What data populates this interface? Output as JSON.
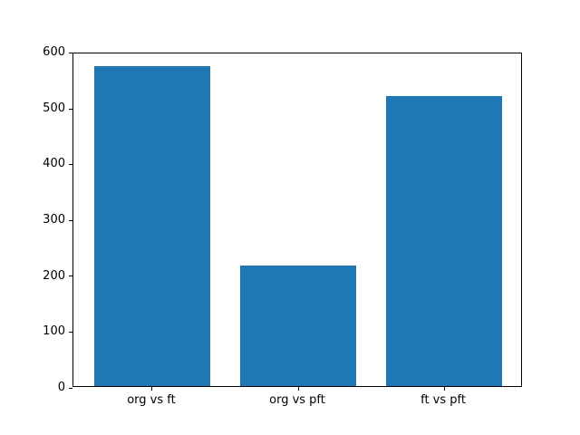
{
  "chart_data": {
    "type": "bar",
    "categories": [
      "org vs ft",
      "org vs pft",
      "ft vs pft"
    ],
    "values": [
      574,
      216,
      520
    ],
    "title": "",
    "xlabel": "",
    "ylabel": "",
    "ylim": [
      0,
      600
    ],
    "yticks": [
      0,
      100,
      200,
      300,
      400,
      500,
      600
    ],
    "bar_width_fraction": 0.8,
    "x_margin_fraction": 0.05,
    "bar_color": "#1f77b4",
    "axis_color": "#000000",
    "text_color": "#000000",
    "background_color": "#ffffff",
    "grid": false,
    "legend": "none"
  }
}
